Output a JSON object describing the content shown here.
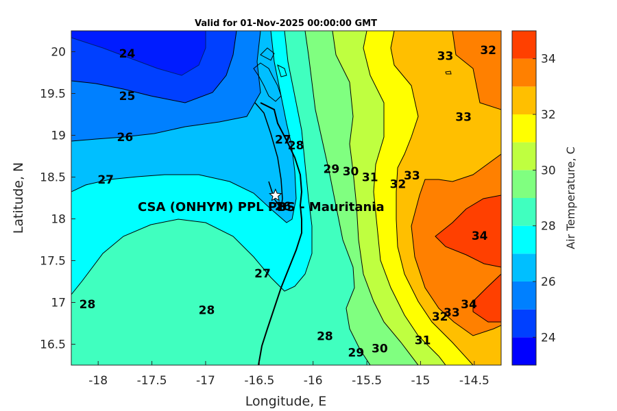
{
  "chart_data": {
    "type": "contour",
    "title": "Valid for 01-Nov-2025 00:00:00 GMT",
    "xlabel": "Longitude, E",
    "ylabel": "Latitude, N",
    "xlim": [
      -18.25,
      -14.25
    ],
    "ylim": [
      16.25,
      20.25
    ],
    "x_ticks": [
      -18,
      -17.5,
      -17,
      -16.5,
      -16,
      -15.5,
      -15,
      -14.5
    ],
    "x_tick_labels": [
      "-18",
      "-17.5",
      "-17",
      "-16.5",
      "-16",
      "-15.5",
      "-15",
      "-14.5"
    ],
    "y_ticks": [
      16.5,
      17,
      17.5,
      18,
      18.5,
      19,
      19.5,
      20
    ],
    "y_tick_labels": [
      "16.5",
      "17",
      "17.5",
      "18",
      "18.5",
      "19",
      "19.5",
      "20"
    ],
    "colorbar": {
      "label": "Air Temperature, C",
      "range": [
        23,
        35
      ],
      "ticks": [
        24,
        26,
        28,
        30,
        32,
        34
      ],
      "tick_labels": [
        "24",
        "26",
        "28",
        "30",
        "32",
        "34"
      ],
      "levels": [
        23,
        24,
        25,
        26,
        27,
        28,
        29,
        30,
        31,
        32,
        33,
        34,
        35
      ],
      "colors": [
        "#0000ff",
        "#0040ff",
        "#0080ff",
        "#00bfff",
        "#00ffff",
        "#40ffbf",
        "#80ff80",
        "#bfff40",
        "#ffff00",
        "#ffbf00",
        "#ff8000",
        "#ff4000"
      ]
    },
    "contour_labels": [
      {
        "text": "24",
        "lon": -17.73,
        "lat": 19.98
      },
      {
        "text": "25",
        "lon": -17.73,
        "lat": 19.47
      },
      {
        "text": "26",
        "lon": -17.75,
        "lat": 18.98
      },
      {
        "text": "27",
        "lon": -17.93,
        "lat": 18.47
      },
      {
        "text": "28",
        "lon": -18.1,
        "lat": 16.98
      },
      {
        "text": "28",
        "lon": -16.99,
        "lat": 16.91
      },
      {
        "text": "27",
        "lon": -16.47,
        "lat": 17.35
      },
      {
        "text": "26",
        "lon": -16.28,
        "lat": 18.15
      },
      {
        "text": "27",
        "lon": -16.28,
        "lat": 18.95
      },
      {
        "text": "28",
        "lon": -16.16,
        "lat": 18.88
      },
      {
        "text": "28",
        "lon": -15.89,
        "lat": 16.6
      },
      {
        "text": "29",
        "lon": -15.83,
        "lat": 18.6
      },
      {
        "text": "29",
        "lon": -15.6,
        "lat": 16.4
      },
      {
        "text": "30",
        "lon": -15.65,
        "lat": 18.57
      },
      {
        "text": "30",
        "lon": -15.38,
        "lat": 16.45
      },
      {
        "text": "31",
        "lon": -15.47,
        "lat": 18.5
      },
      {
        "text": "31",
        "lon": -14.98,
        "lat": 16.55
      },
      {
        "text": "32",
        "lon": -15.21,
        "lat": 18.42
      },
      {
        "text": "32",
        "lon": -14.82,
        "lat": 16.83
      },
      {
        "text": "33",
        "lon": -15.08,
        "lat": 18.52
      },
      {
        "text": "33",
        "lon": -14.77,
        "lat": 19.95
      },
      {
        "text": "33",
        "lon": -14.6,
        "lat": 19.22
      },
      {
        "text": "33",
        "lon": -14.71,
        "lat": 16.88
      },
      {
        "text": "34",
        "lon": -14.45,
        "lat": 17.8
      },
      {
        "text": "34",
        "lon": -14.55,
        "lat": 16.98
      },
      {
        "text": "32",
        "lon": -14.37,
        "lat": 20.02
      }
    ],
    "site": {
      "label": "CSA (ONHYM) PPL PBS  - Mauritania",
      "lon": -16.35,
      "lat": 18.28
    }
  }
}
